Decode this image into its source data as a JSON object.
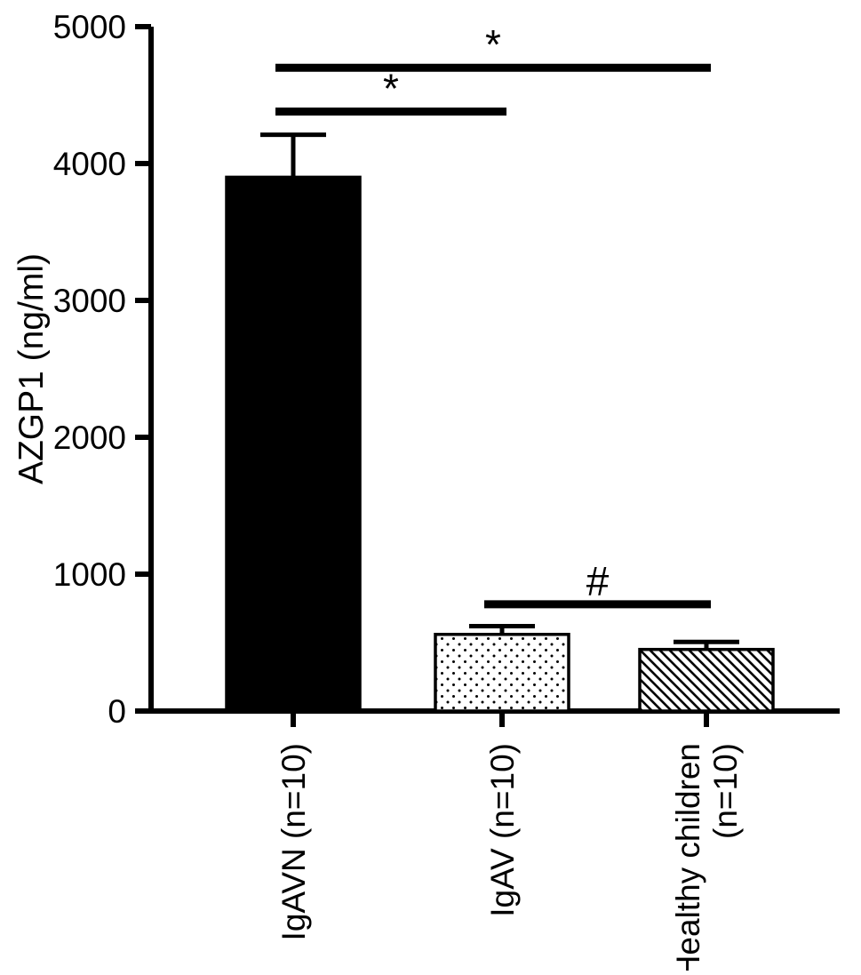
{
  "chart_data": {
    "type": "bar",
    "title": "",
    "xlabel": "",
    "ylabel": "AZGP1 (ng/ml)",
    "ylim": [
      0,
      5000
    ],
    "yticks": [
      0,
      1000,
      2000,
      3000,
      4000,
      5000
    ],
    "grid": false,
    "legend": "none",
    "categories": [
      {
        "label_lines": [
          "IgAVN (n=10)"
        ]
      },
      {
        "label_lines": [
          "IgAV (n=10)"
        ]
      },
      {
        "label_lines": [
          "Healthy children",
          "(n=10)"
        ]
      }
    ],
    "series": [
      {
        "name": "AZGP1",
        "values": [
          3900,
          560,
          450
        ],
        "errors": [
          310,
          60,
          55
        ],
        "bar_patterns": [
          "solid-black",
          "dots",
          "diagonal-stripes"
        ]
      }
    ],
    "annotations": [
      {
        "kind": "significance-bracket",
        "label": "*",
        "from": 0,
        "to": 1,
        "y_value": 4380
      },
      {
        "kind": "significance-bracket",
        "label": "*",
        "from": 0,
        "to": 2,
        "y_value": 4700
      },
      {
        "kind": "significance-bracket",
        "label": "#",
        "from": 1,
        "to": 2,
        "y_value": 780
      }
    ],
    "colors": {
      "axis": "#000000",
      "bar_fill": "#000000",
      "pattern_stroke": "#000000",
      "background": "#ffffff"
    }
  }
}
